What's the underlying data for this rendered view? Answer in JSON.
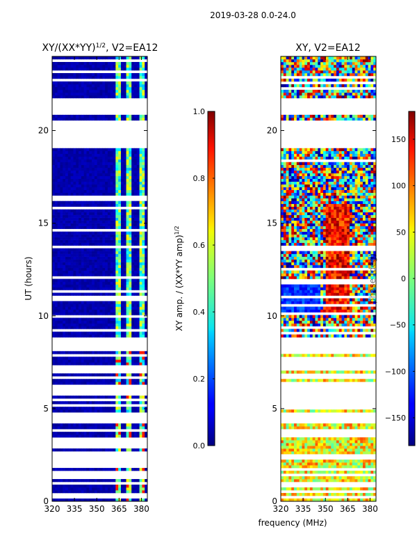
{
  "figure": {
    "suptitle": "2019-03-28 0.0-24.0",
    "xlabel": "frequency (MHz)"
  },
  "chart_data": [
    {
      "type": "heatmap",
      "title_main": "XY/(XX*YY)",
      "title_sup": "1/2",
      "title_suffix": ", V2=EA12",
      "ylabel": "UT (hours)",
      "xlim": [
        320,
        384
      ],
      "ylim": [
        0,
        24
      ],
      "xticks": [
        "320",
        "335",
        "350",
        "365",
        "380"
      ],
      "xtick_values": [
        320,
        335,
        350,
        365,
        380
      ],
      "yticks": [
        "0",
        "5",
        "10",
        "15",
        "20"
      ],
      "ytick_values": [
        0,
        5,
        10,
        15,
        20
      ],
      "flagged_ut_ranges": [
        [
          8.1,
          8.9
        ],
        [
          19.0,
          20.5
        ],
        [
          20.9,
          21.8
        ]
      ],
      "colorbar": {
        "label_main": "XY amp. / (XX*YY amp)",
        "label_sup": "1/2",
        "range": [
          0.0,
          1.0
        ],
        "ticks": [
          "0.0",
          "0.2",
          "0.4",
          "0.6",
          "0.8",
          "1.0"
        ],
        "tick_values": [
          0.0,
          0.2,
          0.4,
          0.6,
          0.8,
          1.0
        ]
      }
    },
    {
      "type": "heatmap",
      "title_main": "XY",
      "title_suffix": ", V2=EA12",
      "xlim": [
        320,
        384
      ],
      "ylim": [
        0,
        24
      ],
      "xticks": [
        "320",
        "335",
        "350",
        "365",
        "380"
      ],
      "xtick_values": [
        320,
        335,
        350,
        365,
        380
      ],
      "yticks": [
        "0",
        "5",
        "10",
        "15",
        "20"
      ],
      "ytick_values": [
        0,
        5,
        10,
        15,
        20
      ],
      "flagged_ut_ranges": [
        [
          8.1,
          8.9
        ],
        [
          19.0,
          20.5
        ],
        [
          20.9,
          21.8
        ]
      ],
      "colorbar": {
        "label_main": "phase (deg)",
        "range": [
          -180,
          180
        ],
        "ticks": [
          "150",
          "100",
          "50",
          "0",
          "−50",
          "−100",
          "−150"
        ],
        "tick_values": [
          150,
          100,
          50,
          0,
          -50,
          -100,
          -150
        ]
      }
    }
  ]
}
